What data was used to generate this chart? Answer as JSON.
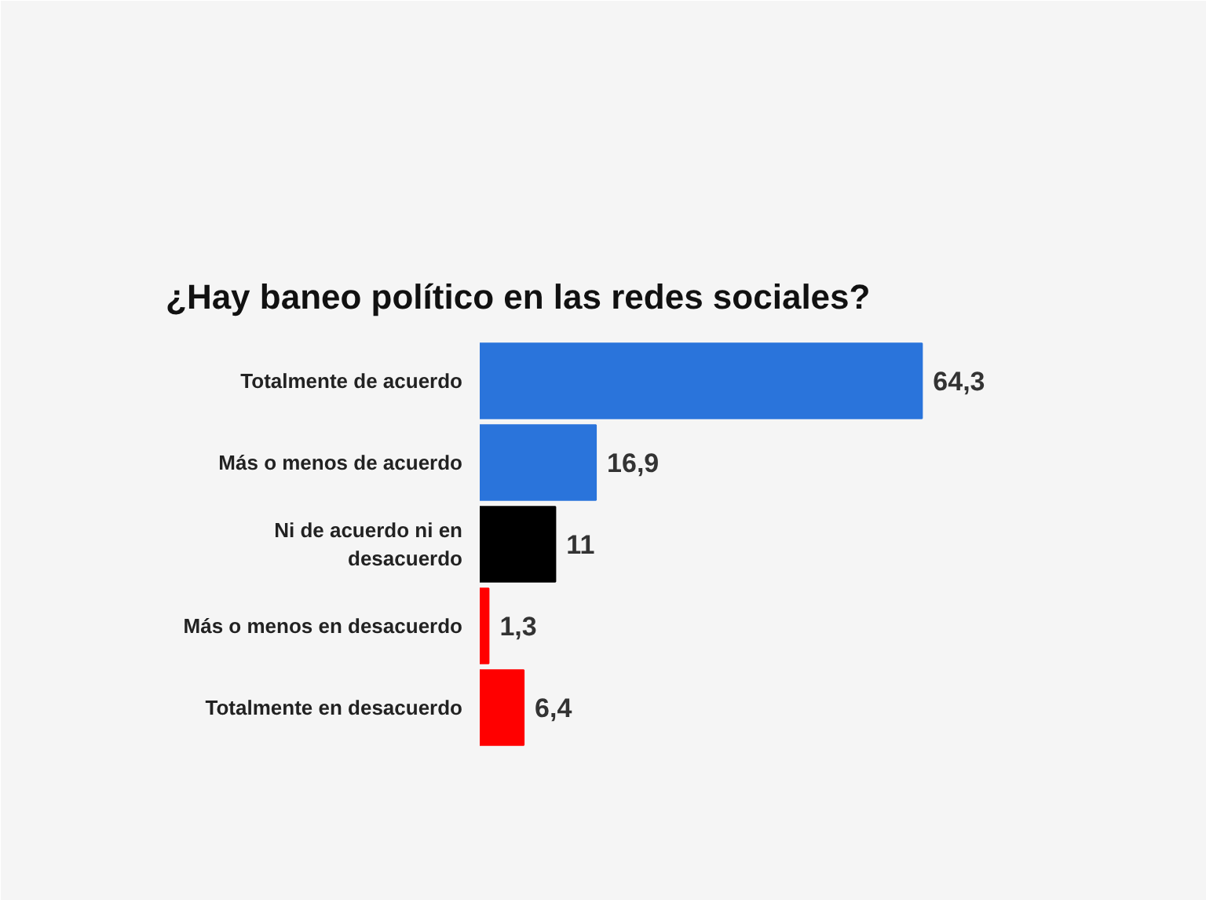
{
  "chart_data": {
    "type": "bar",
    "orientation": "horizontal",
    "title": "¿Hay baneo político en las redes sociales?",
    "categories": [
      "Totalmente de acuerdo",
      "Más o menos de acuerdo",
      "Ni de acuerdo ni en desacuerdo",
      "Más o menos en desacuerdo",
      "Totalmente en desacuerdo"
    ],
    "values": [
      64.3,
      16.9,
      11,
      1.3,
      6.4
    ],
    "colors": [
      "#2a74db",
      "#2a74db",
      "#000000",
      "#ff0000",
      "#ff0000"
    ],
    "value_labels": [
      "64,3",
      "16,9",
      "11",
      "1,3",
      "6,4"
    ],
    "tick_labels": "y"
  }
}
